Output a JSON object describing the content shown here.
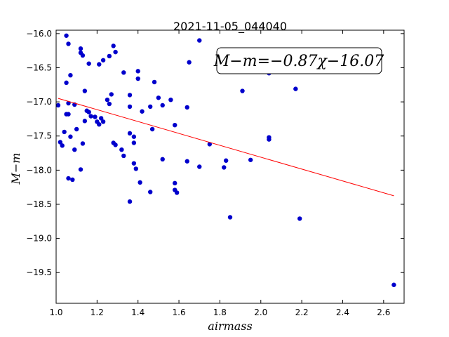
{
  "chart_data": {
    "type": "scatter",
    "title": "2021-11-05_044040",
    "xlabel": "airmass",
    "ylabel": "M−m",
    "xlim": [
      1.0,
      2.7
    ],
    "ylim": [
      -15.95,
      -19.95
    ],
    "y_inverted": true,
    "grid": false,
    "xticks": [
      1.0,
      1.2,
      1.4,
      1.6,
      1.8,
      2.0,
      2.2,
      2.4,
      2.6
    ],
    "xtick_labels": [
      "1.0",
      "1.2",
      "1.4",
      "1.6",
      "1.8",
      "2.0",
      "2.2",
      "2.4",
      "2.6"
    ],
    "yticks": [
      -16.0,
      -16.5,
      -17.0,
      -17.5,
      -18.0,
      -18.5,
      -19.0,
      -19.5
    ],
    "ytick_labels": [
      "−16.0",
      "−16.5",
      "−17.0",
      "−17.5",
      "−18.0",
      "−18.5",
      "−19.0",
      "−19.5"
    ],
    "annotation": "M−m=−0.87χ−16.07",
    "series": [
      {
        "type": "scatter",
        "color": "#0000cc",
        "points": [
          [
            1.05,
            -16.03
          ],
          [
            1.06,
            -16.15
          ],
          [
            1.12,
            -16.22
          ],
          [
            1.12,
            -16.28
          ],
          [
            1.13,
            -16.32
          ],
          [
            1.16,
            -16.44
          ],
          [
            1.21,
            -16.45
          ],
          [
            1.23,
            -16.39
          ],
          [
            1.26,
            -16.33
          ],
          [
            1.28,
            -16.18
          ],
          [
            1.29,
            -16.27
          ],
          [
            1.33,
            -16.57
          ],
          [
            1.07,
            -16.61
          ],
          [
            1.05,
            -16.72
          ],
          [
            1.14,
            -16.84
          ],
          [
            1.4,
            -16.55
          ],
          [
            1.4,
            -16.66
          ],
          [
            1.48,
            -16.71
          ],
          [
            1.7,
            -16.1
          ],
          [
            1.65,
            -16.42
          ],
          [
            1.91,
            -16.84
          ],
          [
            2.04,
            -16.58
          ],
          [
            2.17,
            -16.81
          ],
          [
            1.01,
            -17.05
          ],
          [
            1.06,
            -17.02
          ],
          [
            1.09,
            -17.04
          ],
          [
            1.05,
            -17.18
          ],
          [
            1.06,
            -17.18
          ],
          [
            1.15,
            -17.13
          ],
          [
            1.16,
            -17.15
          ],
          [
            1.17,
            -17.21
          ],
          [
            1.19,
            -17.22
          ],
          [
            1.2,
            -17.29
          ],
          [
            1.21,
            -17.33
          ],
          [
            1.22,
            -17.24
          ],
          [
            1.23,
            -17.29
          ],
          [
            1.25,
            -16.97
          ],
          [
            1.26,
            -17.03
          ],
          [
            1.27,
            -16.89
          ],
          [
            1.36,
            -16.9
          ],
          [
            1.36,
            -17.07
          ],
          [
            1.42,
            -17.14
          ],
          [
            1.46,
            -17.07
          ],
          [
            1.5,
            -16.94
          ],
          [
            1.52,
            -17.05
          ],
          [
            1.56,
            -16.97
          ],
          [
            1.64,
            -17.08
          ],
          [
            1.02,
            -17.59
          ],
          [
            1.03,
            -17.64
          ],
          [
            1.04,
            -17.44
          ],
          [
            1.07,
            -17.51
          ],
          [
            1.09,
            -17.7
          ],
          [
            1.1,
            -17.4
          ],
          [
            1.13,
            -17.61
          ],
          [
            1.14,
            -17.28
          ],
          [
            1.28,
            -17.6
          ],
          [
            1.29,
            -17.63
          ],
          [
            1.32,
            -17.7
          ],
          [
            1.33,
            -17.79
          ],
          [
            1.36,
            -17.46
          ],
          [
            1.38,
            -17.51
          ],
          [
            1.38,
            -17.6
          ],
          [
            1.47,
            -17.4
          ],
          [
            1.58,
            -17.34
          ],
          [
            1.75,
            -17.62
          ],
          [
            2.04,
            -17.52
          ],
          [
            2.04,
            -17.55
          ],
          [
            1.12,
            -17.99
          ],
          [
            1.38,
            -17.9
          ],
          [
            1.39,
            -17.98
          ],
          [
            1.52,
            -17.84
          ],
          [
            1.64,
            -17.87
          ],
          [
            1.7,
            -17.95
          ],
          [
            1.82,
            -17.96
          ],
          [
            1.83,
            -17.86
          ],
          [
            1.95,
            -17.85
          ],
          [
            1.06,
            -18.12
          ],
          [
            1.08,
            -18.14
          ],
          [
            1.36,
            -18.46
          ],
          [
            1.41,
            -18.18
          ],
          [
            1.46,
            -18.32
          ],
          [
            1.58,
            -18.19
          ],
          [
            1.58,
            -18.29
          ],
          [
            1.59,
            -18.33
          ],
          [
            1.85,
            -18.69
          ],
          [
            2.19,
            -18.71
          ],
          [
            2.65,
            -19.68
          ]
        ]
      },
      {
        "type": "line",
        "color": "#ff0000",
        "slope": -0.87,
        "intercept": -16.07,
        "x_range": [
          1.01,
          2.65
        ]
      }
    ]
  }
}
